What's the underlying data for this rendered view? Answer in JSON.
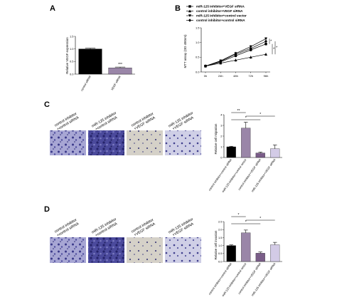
{
  "panels": {
    "a": "A",
    "b": "B",
    "c": "C",
    "d": "D"
  },
  "condition_labels": [
    [
      "control inhibitor",
      "+control siRNA"
    ],
    [
      "miR-125 inhibitor",
      "+control siRNA"
    ],
    [
      "control inhibitor",
      "+VEGF siRNA"
    ],
    [
      "miR-125 inhibitor",
      "+VEGF siRNA"
    ]
  ],
  "chart_data": [
    {
      "panel": "A",
      "type": "bar",
      "categories": [
        "control siRNA",
        "VEGF siRNA"
      ],
      "values": [
        1.0,
        0.25
      ],
      "errors": [
        0.03,
        0.03
      ],
      "colors": [
        "#000000",
        "#9a86a8"
      ],
      "ylabel": "Relative VEGF expression",
      "ylim": [
        0,
        1.5
      ],
      "yticks": [
        "0.0",
        "0.5",
        "1.0",
        "1.5"
      ],
      "annotations": [
        {
          "category": "VEGF siRNA",
          "text": "***"
        }
      ]
    },
    {
      "panel": "B",
      "type": "line",
      "x": [
        "0h",
        "24h",
        "48h",
        "72h",
        "96h"
      ],
      "series": [
        {
          "name": "miR-125 inhibitor+VEGF siRNA",
          "values": [
            0.2,
            0.34,
            0.55,
            0.75,
            0.95
          ],
          "marker": "square"
        },
        {
          "name": "control inhibitor+VEGF siRNA",
          "values": [
            0.2,
            0.3,
            0.4,
            0.5,
            0.6
          ],
          "marker": "triangle"
        },
        {
          "name": "miR-125 inhibitor+control vector",
          "values": [
            0.2,
            0.38,
            0.63,
            0.86,
            1.13
          ],
          "marker": "triangle-down"
        },
        {
          "name": "control inhibitor+control siRNA",
          "values": [
            0.2,
            0.36,
            0.6,
            0.8,
            1.04
          ],
          "marker": "diamond"
        }
      ],
      "ylabel": "MTT assay (OD 490nm)",
      "ylim": [
        0,
        1.5
      ],
      "yticks": [
        "0.0",
        "0.5",
        "1.0",
        "1.5"
      ],
      "annotations": [
        "*",
        "*",
        "*"
      ]
    },
    {
      "panel": "C",
      "type": "bar",
      "categories": [
        "control inhibitor+control siRNA",
        "miR-125 inhibitor+control vector",
        "control inhibitor+VEGF siRNA",
        "miR-125 inhibitor+VEGF siRNA"
      ],
      "values": [
        1.0,
        2.75,
        0.42,
        0.82
      ],
      "errors": [
        0.05,
        0.55,
        0.08,
        0.35
      ],
      "colors": [
        "#000000",
        "#9a86a8",
        "#7a5d88",
        "#d3cbe6"
      ],
      "ylabel": "Relative cell migration",
      "ylim": [
        0,
        4
      ],
      "yticks": [
        "0",
        "1",
        "2",
        "3",
        "4"
      ],
      "annotations": [
        "**",
        "*",
        "*"
      ]
    },
    {
      "panel": "D",
      "type": "bar",
      "categories": [
        "control inhibitor+control siRNA",
        "miR-125 inhibitor+control vector",
        "control inhibitor+VEGF siRNA",
        "miR-125 inhibitor+VEGF siRNA"
      ],
      "values": [
        1.0,
        1.8,
        0.52,
        1.05
      ],
      "errors": [
        0.04,
        0.17,
        0.08,
        0.15
      ],
      "colors": [
        "#000000",
        "#9a86a8",
        "#7a5d88",
        "#d3cbe6"
      ],
      "ylabel": "Relative cell invasion",
      "ylim": [
        0,
        2.5
      ],
      "yticks": [
        "0.0",
        "0.5",
        "1.0",
        "1.5",
        "2.0",
        "2.5"
      ],
      "annotations": [
        "*",
        "*",
        "*"
      ]
    }
  ]
}
